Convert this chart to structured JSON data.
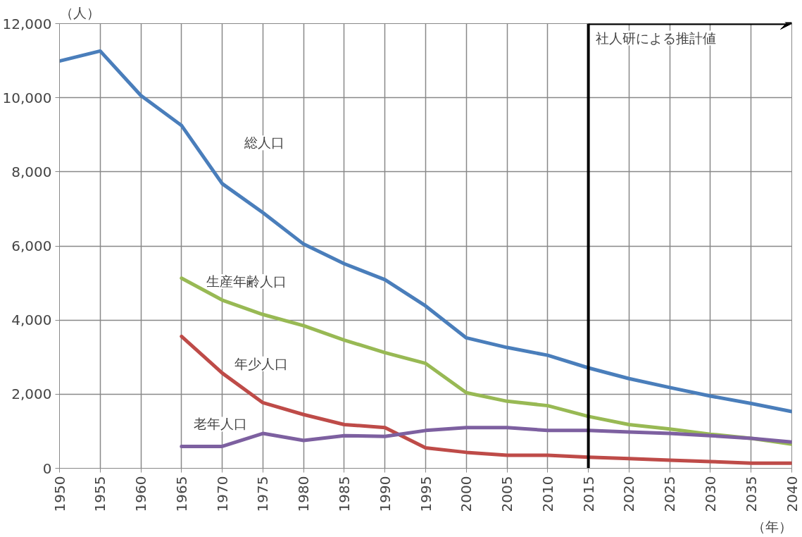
{
  "chart_data": {
    "type": "line",
    "xlabel": "（年）",
    "ylabel": "（人）",
    "x": [
      1950,
      1955,
      1960,
      1965,
      1970,
      1975,
      1980,
      1985,
      1990,
      1995,
      2000,
      2005,
      2010,
      2015,
      2020,
      2025,
      2030,
      2035,
      2040
    ],
    "series": [
      {
        "name": "総人口",
        "color": "#4a7ebb",
        "values": [
          10990,
          11260,
          10060,
          9250,
          7680,
          6900,
          6050,
          5520,
          5090,
          4380,
          3520,
          3260,
          3050,
          2710,
          2420,
          2180,
          1950,
          1750,
          1530
        ]
      },
      {
        "name": "生産年齢人口",
        "color": "#98b954",
        "values": [
          null,
          null,
          null,
          5130,
          4540,
          4150,
          3850,
          3460,
          3120,
          2830,
          2040,
          1810,
          1690,
          1400,
          1180,
          1060,
          920,
          810,
          650
        ]
      },
      {
        "name": "年少人口",
        "color": "#be4b48",
        "values": [
          null,
          null,
          null,
          3560,
          2570,
          1770,
          1450,
          1180,
          1100,
          550,
          430,
          350,
          350,
          300,
          260,
          220,
          180,
          140,
          140
        ]
      },
      {
        "name": "老年人口",
        "color": "#7d60a0",
        "values": [
          null,
          null,
          null,
          590,
          590,
          940,
          750,
          880,
          860,
          1020,
          1100,
          1100,
          1020,
          1020,
          980,
          940,
          880,
          810,
          710
        ]
      }
    ],
    "xlim": [
      1950,
      2040
    ],
    "xticks": [
      1950,
      1955,
      1960,
      1965,
      1970,
      1975,
      1980,
      1985,
      1990,
      1995,
      2000,
      2005,
      2010,
      2015,
      2020,
      2025,
      2030,
      2035,
      2040
    ],
    "ylim": [
      0,
      12000
    ],
    "yticks": [
      0,
      {
        "value": 2000,
        "label": "2,000"
      },
      {
        "value": 4000,
        "label": "4,000"
      },
      {
        "value": 6000,
        "label": "6,000"
      },
      {
        "value": 8000,
        "label": "8,000"
      },
      {
        "value": 10000,
        "label": "10,000"
      },
      {
        "value": 12000,
        "label": "12,000"
      }
    ],
    "ref_lines": [
      {
        "axis": "x",
        "value": 2015,
        "label": "社人研による推計値",
        "color": "#000000"
      }
    ],
    "grid": true,
    "marker": "none",
    "line_style": "solid"
  }
}
